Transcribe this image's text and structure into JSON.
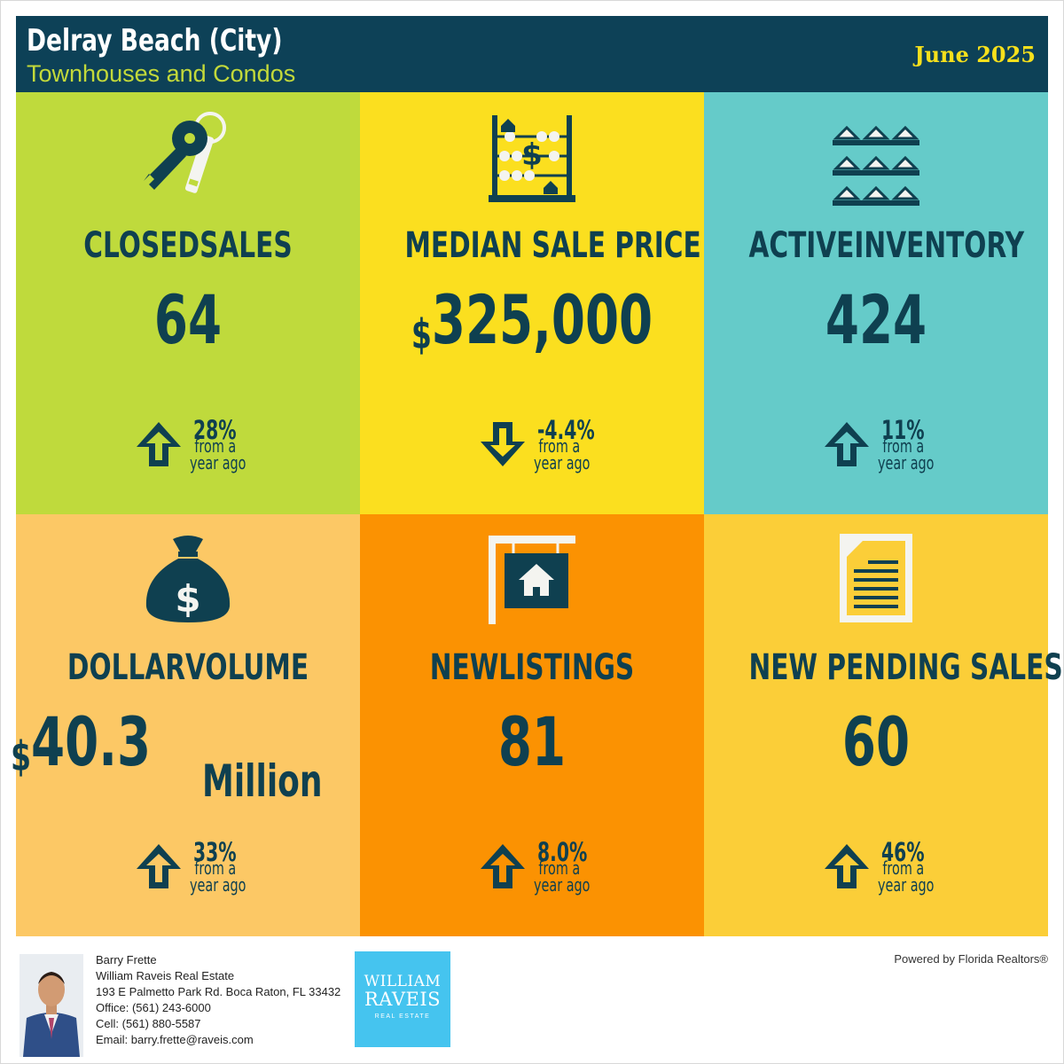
{
  "header": {
    "title": "Delray Beach (City)",
    "subtitle": "Townhouses and Condos",
    "date": "June 2025"
  },
  "colors": {
    "header_bg": "#0d4157",
    "text_dark": "#0f4050",
    "closed_sales_bg": "#bfda3c",
    "median_price_bg": "#fbdf1f",
    "inventory_bg": "#65cbc9",
    "dollar_volume_bg": "#fcc865",
    "new_listings_bg": "#fb9202",
    "pending_sales_bg": "#fbce38"
  },
  "panels": [
    {
      "id": "closed-sales",
      "icon": "keys-icon",
      "title": "CLOSEDSALES",
      "value": "64",
      "direction": "up",
      "change": "28%",
      "from_a": "from a",
      "year_ago": "year ago"
    },
    {
      "id": "median-sale-price",
      "icon": "abacus-icon",
      "title": "MEDIAN SALE PRICE",
      "currency": "$",
      "value": "325,000",
      "direction": "down",
      "change": "-4.4%",
      "from_a": "from a",
      "year_ago": "year ago"
    },
    {
      "id": "active-inventory",
      "icon": "houses-row-icon",
      "title": "ACTIVEINVENTORY",
      "value": "424",
      "direction": "up",
      "change": "11%",
      "from_a": "from a",
      "year_ago": "year ago"
    },
    {
      "id": "dollar-volume",
      "icon": "money-bag-icon",
      "title": "DOLLARVOLUME",
      "currency": "$",
      "value": "40.3",
      "unit": "Million",
      "direction": "up",
      "change": "33%",
      "from_a": "from a",
      "year_ago": "year ago"
    },
    {
      "id": "new-listings",
      "icon": "house-sign-icon",
      "title": "NEWLISTINGS",
      "value": "81",
      "direction": "up",
      "change": "8.0%",
      "from_a": "from a",
      "year_ago": "year ago"
    },
    {
      "id": "new-pending-sales",
      "icon": "document-icon",
      "title": "NEW PENDING SALES",
      "value": "60",
      "direction": "up",
      "change": "46%",
      "from_a": "from a",
      "year_ago": "year ago"
    }
  ],
  "footer": {
    "agent_name": "Barry Frette",
    "company": "William Raveis Real Estate",
    "address": "193 E Palmetto Park Rd. Boca Raton, FL 33432",
    "office": "Office: (561) 243-6000",
    "cell": "Cell: (561) 880-5587",
    "email": "Email: barry.frette@raveis.com",
    "logo_line1": "WILLIAM",
    "logo_line2": "RAVEIS",
    "logo_line3": "REAL ESTATE",
    "powered_by": "Powered by Florida Realtors®"
  }
}
